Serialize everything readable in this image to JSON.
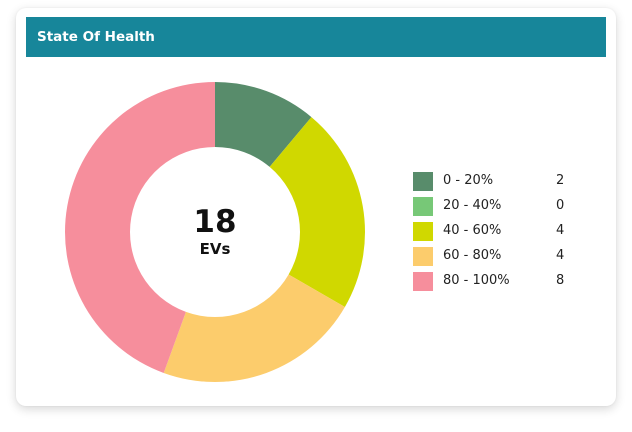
{
  "card": {
    "title": "State Of Health"
  },
  "center": {
    "value": "18",
    "unit": "EVs"
  },
  "colors": {
    "header": "#17869a",
    "slices": [
      "#588c6b",
      "#77c877",
      "#d0d800",
      "#fccc6c",
      "#f68e9c"
    ]
  },
  "chart_data": {
    "type": "pie",
    "variant": "donut",
    "categories": [
      "0 - 20%",
      "20 - 40%",
      "40 - 60%",
      "60 - 80%",
      "80 - 100%"
    ],
    "values": [
      2,
      0,
      4,
      4,
      8
    ],
    "colors": [
      "#588c6b",
      "#77c877",
      "#d0d800",
      "#fccc6c",
      "#f68e9c"
    ],
    "total": 18,
    "legend": "right"
  }
}
